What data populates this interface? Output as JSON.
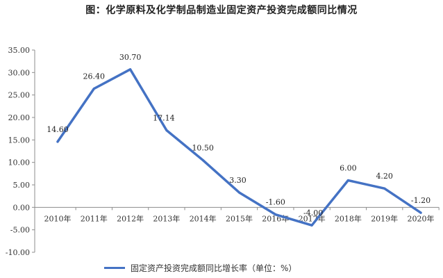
{
  "chart_data": {
    "type": "line",
    "title": "图：化学原料及化学制品制造业固定资产投资完成额同比情况",
    "categories": [
      "2010年",
      "2011年",
      "2012年",
      "2013年",
      "2014年",
      "2015年",
      "2016年",
      "2017年",
      "2018年",
      "2019年",
      "2020年"
    ],
    "series": [
      {
        "name": "固定资产投资完成额同比增长率（单位：%）",
        "values": [
          14.6,
          26.4,
          30.7,
          17.14,
          10.5,
          3.3,
          -1.6,
          -4.0,
          6.0,
          4.2,
          -1.2
        ],
        "labels": [
          "14.60",
          "26.40",
          "30.70",
          "17.14",
          "10.50",
          "3.30",
          "-1.60",
          "-4.00",
          "6.00",
          "4.20",
          "-1.20"
        ]
      }
    ],
    "ylim": [
      -10,
      35
    ],
    "yticks": [
      "35.00",
      "30.00",
      "25.00",
      "20.00",
      "15.00",
      "10.00",
      "5.00",
      "0.00",
      "-5.00",
      "-10.00"
    ],
    "grid": false,
    "legend_position": "bottom",
    "colors": {
      "line": "#4472C4",
      "axis": "#8c8c8c"
    }
  }
}
